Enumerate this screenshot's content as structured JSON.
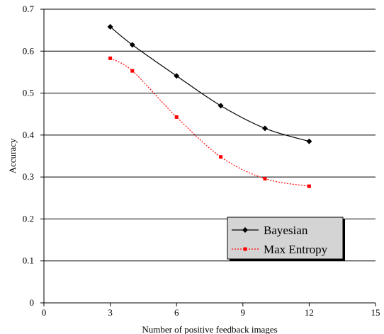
{
  "chart_data": {
    "type": "line",
    "title": "",
    "xlabel": "Number of positive feedback images",
    "ylabel": "Accuracy",
    "xlim": [
      0,
      15
    ],
    "ylim": [
      0,
      0.7
    ],
    "xticks": [
      "0",
      "3",
      "6",
      "9",
      "12",
      "15"
    ],
    "yticks": [
      "0",
      "0.1",
      "0.2",
      "0.3",
      "0.4",
      "0.5",
      "0.6",
      "0.7"
    ],
    "grid": "horizontal",
    "legend_position": "bottom-right",
    "series": [
      {
        "name": "Bayesian",
        "color": "#000000",
        "marker": "diamond",
        "line_style": "solid",
        "x": [
          3,
          4,
          6,
          8,
          10,
          12
        ],
        "y": [
          0.658,
          0.615,
          0.541,
          0.47,
          0.416,
          0.385
        ]
      },
      {
        "name": "Max Entropy",
        "color": "#ff0000",
        "marker": "square",
        "line_style": "dotted",
        "x": [
          3,
          4,
          6,
          8,
          10,
          12
        ],
        "y": [
          0.583,
          0.553,
          0.443,
          0.348,
          0.296,
          0.278
        ]
      }
    ]
  }
}
